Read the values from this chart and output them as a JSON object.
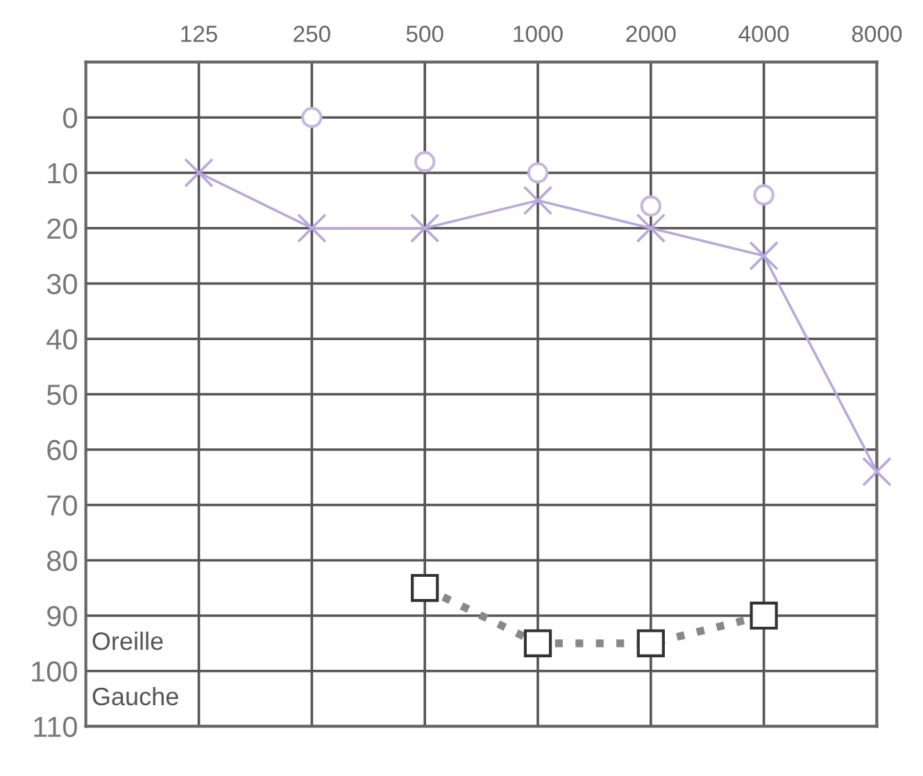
{
  "chart_data": {
    "type": "line",
    "categories": [
      "125",
      "250",
      "500",
      "1000",
      "2000",
      "4000",
      "8000"
    ],
    "ylim": [
      110,
      -10
    ],
    "yticks": [
      0,
      10,
      20,
      30,
      40,
      50,
      60,
      70,
      80,
      90,
      100,
      110
    ],
    "grid": true,
    "annotations": [
      "Oreille",
      "Gauche"
    ],
    "series": [
      {
        "color": "#b8a8dc",
        "marker": "cross",
        "line_style": "solid",
        "values": [
          10,
          20,
          20,
          15,
          20,
          25,
          64
        ]
      },
      {
        "type": "scatter",
        "color": "#c4b8e0",
        "marker": "circle",
        "values": [
          null,
          0,
          8,
          10,
          16,
          14,
          null
        ]
      },
      {
        "color": "#888888",
        "marker": "square",
        "line_style": "dotted",
        "values": [
          null,
          null,
          85,
          95,
          95,
          90,
          null
        ]
      }
    ]
  }
}
